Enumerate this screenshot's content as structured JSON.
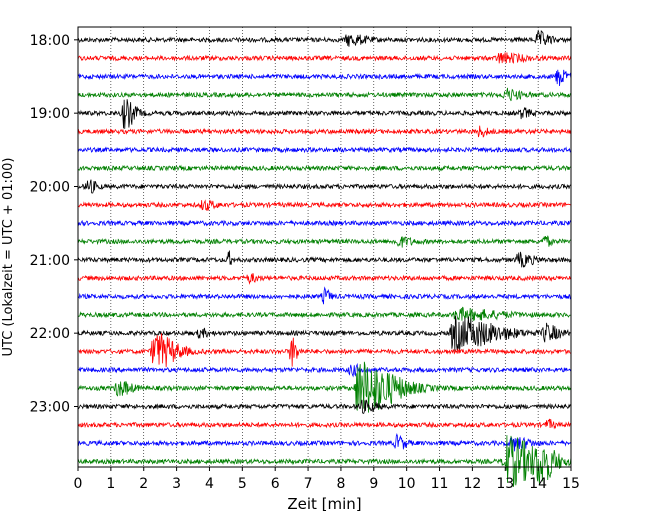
{
  "chart_data": {
    "type": "line",
    "title": "",
    "xlabel": "Zeit  [min]",
    "ylabel": "UTC (Lokalzeit = UTC + 01:00)",
    "xlim": [
      0,
      15
    ],
    "x_ticks": [
      "0",
      "1",
      "2",
      "3",
      "4",
      "5",
      "6",
      "7",
      "8",
      "9",
      "10",
      "11",
      "12",
      "13",
      "14",
      "15"
    ],
    "y_ticks": [
      "18:00",
      "19:00",
      "20:00",
      "21:00",
      "22:00",
      "23:00"
    ],
    "grid": "vertical dotted at each minute",
    "trace_interval_min": 15,
    "trace_colors": [
      "#000000",
      "#ff0000",
      "#0000ff",
      "#008000"
    ],
    "traces": [
      {
        "start": "18:00",
        "color": "#000000",
        "events": [
          {
            "t": 8.2,
            "amp": 0.6,
            "dur": 0.6
          },
          {
            "t": 14.0,
            "amp": 0.8,
            "dur": 0.4
          }
        ]
      },
      {
        "start": "18:15",
        "color": "#ff0000",
        "events": [
          {
            "t": 12.8,
            "amp": 0.5,
            "dur": 0.8
          }
        ]
      },
      {
        "start": "18:30",
        "color": "#0000ff",
        "events": [
          {
            "t": 14.6,
            "amp": 0.9,
            "dur": 0.3
          }
        ]
      },
      {
        "start": "18:45",
        "color": "#008000",
        "events": [
          {
            "t": 13.0,
            "amp": 0.6,
            "dur": 0.5
          }
        ]
      },
      {
        "start": "19:00",
        "color": "#000000",
        "events": [
          {
            "t": 1.4,
            "amp": 1.6,
            "dur": 0.4
          },
          {
            "t": 13.5,
            "amp": 0.5,
            "dur": 0.3
          }
        ]
      },
      {
        "start": "19:15",
        "color": "#ff0000",
        "events": [
          {
            "t": 12.2,
            "amp": 0.5,
            "dur": 0.3
          }
        ]
      },
      {
        "start": "19:30",
        "color": "#0000ff",
        "events": []
      },
      {
        "start": "19:45",
        "color": "#008000",
        "events": []
      },
      {
        "start": "20:00",
        "color": "#000000",
        "events": [
          {
            "t": 0.3,
            "amp": 0.7,
            "dur": 0.3
          }
        ]
      },
      {
        "start": "20:15",
        "color": "#ff0000",
        "events": [
          {
            "t": 3.8,
            "amp": 0.5,
            "dur": 0.4
          }
        ]
      },
      {
        "start": "20:30",
        "color": "#0000ff",
        "events": []
      },
      {
        "start": "20:45",
        "color": "#008000",
        "events": [
          {
            "t": 9.7,
            "amp": 0.5,
            "dur": 0.5
          },
          {
            "t": 14.2,
            "amp": 0.6,
            "dur": 0.2
          }
        ]
      },
      {
        "start": "21:00",
        "color": "#000000",
        "events": [
          {
            "t": 4.6,
            "amp": 0.8,
            "dur": 0.1
          },
          {
            "t": 13.4,
            "amp": 0.7,
            "dur": 0.5
          }
        ]
      },
      {
        "start": "21:15",
        "color": "#ff0000",
        "events": [
          {
            "t": 5.2,
            "amp": 0.4,
            "dur": 0.3
          }
        ]
      },
      {
        "start": "21:30",
        "color": "#0000ff",
        "events": [
          {
            "t": 7.5,
            "amp": 0.8,
            "dur": 0.2
          }
        ]
      },
      {
        "start": "21:45",
        "color": "#008000",
        "events": [
          {
            "t": 11.5,
            "amp": 0.6,
            "dur": 1.5
          }
        ]
      },
      {
        "start": "22:00",
        "color": "#000000",
        "events": [
          {
            "t": 3.7,
            "amp": 0.4,
            "dur": 0.3
          },
          {
            "t": 11.4,
            "amp": 1.8,
            "dur": 1.6
          },
          {
            "t": 14.2,
            "amp": 0.9,
            "dur": 0.5
          }
        ]
      },
      {
        "start": "22:15",
        "color": "#ff0000",
        "events": [
          {
            "t": 2.3,
            "amp": 2.0,
            "dur": 0.8
          },
          {
            "t": 6.5,
            "amp": 1.6,
            "dur": 0.2
          }
        ]
      },
      {
        "start": "22:30",
        "color": "#0000ff",
        "events": [
          {
            "t": 8.3,
            "amp": 0.5,
            "dur": 0.4
          }
        ]
      },
      {
        "start": "22:45",
        "color": "#008000",
        "events": [
          {
            "t": 1.2,
            "amp": 0.8,
            "dur": 0.5
          },
          {
            "t": 8.5,
            "amp": 3.0,
            "dur": 1.4
          }
        ]
      },
      {
        "start": "23:00",
        "color": "#000000",
        "events": [
          {
            "t": 8.6,
            "amp": 0.6,
            "dur": 0.5
          }
        ]
      },
      {
        "start": "23:15",
        "color": "#ff0000",
        "events": [
          {
            "t": 14.3,
            "amp": 0.5,
            "dur": 0.2
          }
        ]
      },
      {
        "start": "23:30",
        "color": "#0000ff",
        "events": [
          {
            "t": 9.7,
            "amp": 0.8,
            "dur": 0.3
          },
          {
            "t": 13.2,
            "amp": 0.7,
            "dur": 0.6
          }
        ]
      },
      {
        "start": "23:45",
        "color": "#008000",
        "events": [
          {
            "t": 13.0,
            "amp": 2.8,
            "dur": 1.2
          },
          {
            "t": 14.0,
            "amp": 1.6,
            "dur": 0.6
          }
        ]
      }
    ]
  }
}
